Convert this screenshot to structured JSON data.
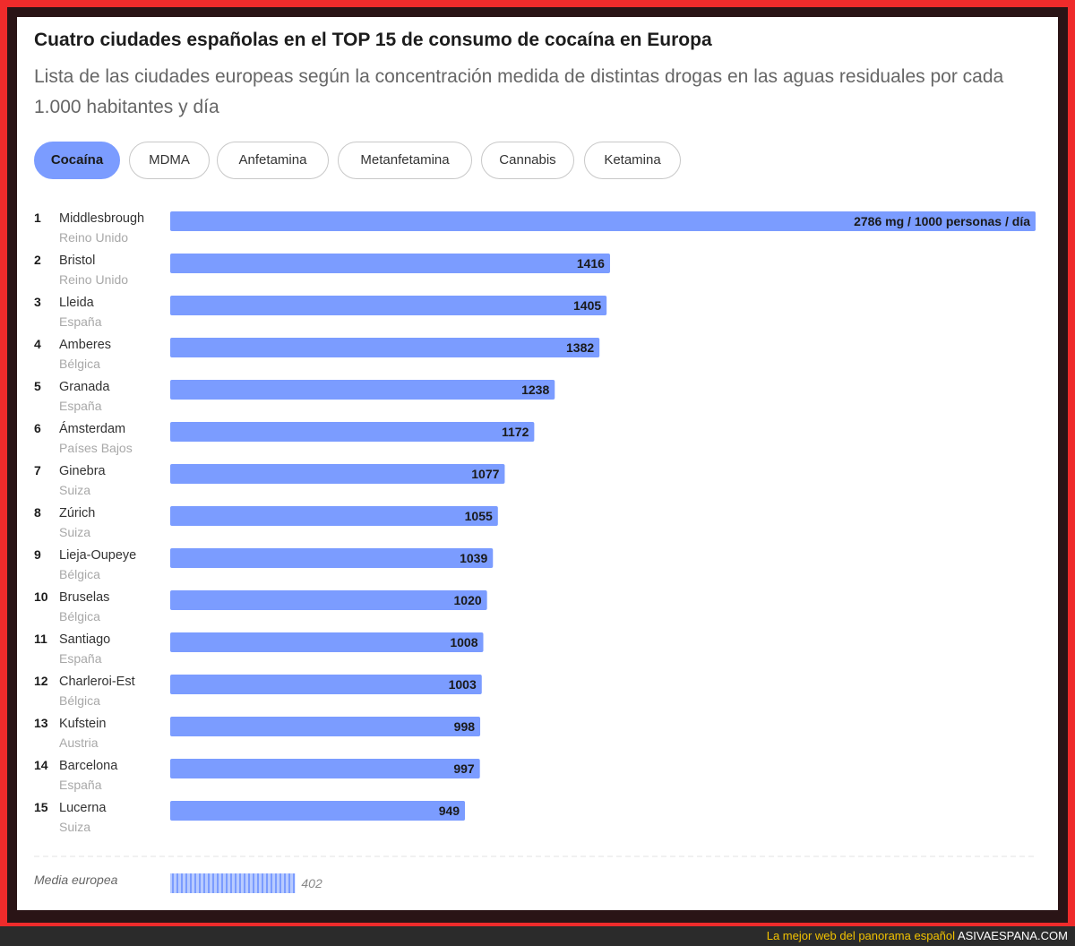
{
  "header": {
    "title": "Cuatro ciudades españolas en el TOP 15 de consumo de cocaína en Europa",
    "subtitle": "Lista de las ciudades europeas según la concentración medida de distintas drogas en las aguas residuales por cada 1.000 habitantes y día"
  },
  "tabs": [
    {
      "label": "Cocaína",
      "active": true
    },
    {
      "label": "MDMA",
      "active": false
    },
    {
      "label": "Anfetamina",
      "active": false
    },
    {
      "label": "Metanfetamina",
      "active": false
    },
    {
      "label": "Cannabis",
      "active": false
    },
    {
      "label": "Ketamina",
      "active": false
    }
  ],
  "colors": {
    "bar": "#7b9cff",
    "frame": "#ef2b2b",
    "tagline": "#f2c200"
  },
  "chart_data": {
    "type": "bar",
    "orientation": "horizontal",
    "unit_label": "mg / 1000 personas / día",
    "categories": [
      "Middlesbrough",
      "Bristol",
      "Lleida",
      "Amberes",
      "Granada",
      "Ámsterdam",
      "Ginebra",
      "Zúrich",
      "Lieja-Oupeye",
      "Bruselas",
      "Santiago",
      "Charleroi-Est",
      "Kufstein",
      "Barcelona",
      "Lucerna"
    ],
    "rows": [
      {
        "rank": "1",
        "city": "Middlesbrough",
        "country": "Reino Unido",
        "value": 2786,
        "label": "2786 mg / 1000 personas / día"
      },
      {
        "rank": "2",
        "city": "Bristol",
        "country": "Reino Unido",
        "value": 1416,
        "label": "1416"
      },
      {
        "rank": "3",
        "city": "Lleida",
        "country": "España",
        "value": 1405,
        "label": "1405"
      },
      {
        "rank": "4",
        "city": "Amberes",
        "country": "Bélgica",
        "value": 1382,
        "label": "1382"
      },
      {
        "rank": "5",
        "city": "Granada",
        "country": "España",
        "value": 1238,
        "label": "1238"
      },
      {
        "rank": "6",
        "city": "Ámsterdam",
        "country": "Países Bajos",
        "value": 1172,
        "label": "1172"
      },
      {
        "rank": "7",
        "city": "Ginebra",
        "country": "Suiza",
        "value": 1077,
        "label": "1077"
      },
      {
        "rank": "8",
        "city": "Zúrich",
        "country": "Suiza",
        "value": 1055,
        "label": "1055"
      },
      {
        "rank": "9",
        "city": "Lieja-Oupeye",
        "country": "Bélgica",
        "value": 1039,
        "label": "1039"
      },
      {
        "rank": "10",
        "city": "Bruselas",
        "country": "Bélgica",
        "value": 1020,
        "label": "1020"
      },
      {
        "rank": "11",
        "city": "Santiago",
        "country": "España",
        "value": 1008,
        "label": "1008"
      },
      {
        "rank": "12",
        "city": "Charleroi-Est",
        "country": "Bélgica",
        "value": 1003,
        "label": "1003"
      },
      {
        "rank": "13",
        "city": "Kufstein",
        "country": "Austria",
        "value": 998,
        "label": "998"
      },
      {
        "rank": "14",
        "city": "Barcelona",
        "country": "España",
        "value": 997,
        "label": "997"
      },
      {
        "rank": "15",
        "city": "Lucerna",
        "country": "Suiza",
        "value": 949,
        "label": "949"
      }
    ],
    "average": {
      "label": "Media europea",
      "value": 402,
      "value_label": "402"
    }
  },
  "footer": {
    "tagline": "La mejor web del panorama español",
    "site": "ASIVAESPANA.COM"
  }
}
